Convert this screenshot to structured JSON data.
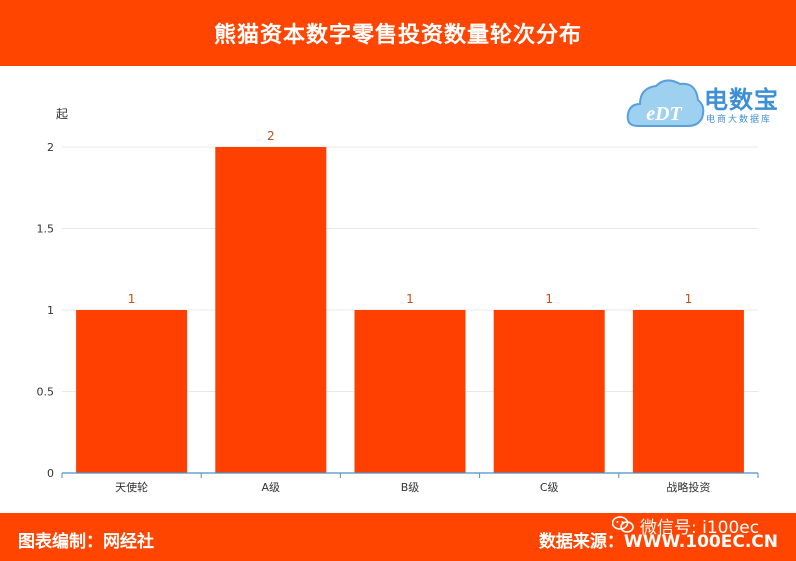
{
  "header": {
    "title": "熊猫资本数字零售投资数量轮次分布"
  },
  "logo": {
    "mark": "eDT",
    "name": "电数宝",
    "subtitle": "电商大数据库",
    "color": "#3d8fd6"
  },
  "footer": {
    "left": "图表编制：网经社",
    "right": "数据来源：WWW.100EC.CN",
    "wechat": "微信号: i100ec",
    "wechat_icon": "wechat-icon"
  },
  "colors": {
    "accent": "#ff4500",
    "bar": "#ff4000",
    "label": "#c0501a"
  },
  "chart_data": {
    "type": "bar",
    "categories": [
      "天使轮",
      "A级",
      "B级",
      "C级",
      "战略投资"
    ],
    "values": [
      1,
      2,
      1,
      1,
      1
    ],
    "ylabel": "起",
    "ylim": [
      0,
      2
    ],
    "yticks": [
      "0",
      "0.5",
      "1",
      "1.5",
      "2"
    ],
    "ytick_values": [
      0,
      0.5,
      1,
      1.5,
      2
    ],
    "grid": true,
    "data_labels": true
  }
}
